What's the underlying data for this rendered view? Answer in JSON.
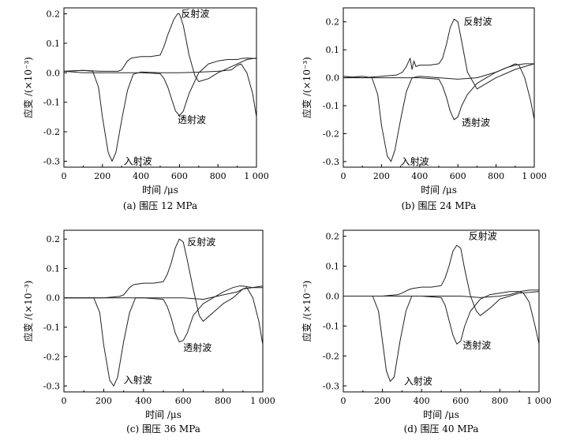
{
  "chart_data": [
    {
      "type": "line",
      "caption": "(a) 围压 12 MPa",
      "xlabel": "时间 /μs",
      "ylabel": "应变 /(×10⁻³)",
      "xlim": [
        0,
        1000
      ],
      "ylim": [
        -0.32,
        0.22
      ],
      "xticks": [
        0,
        200,
        400,
        600,
        800,
        1000
      ],
      "xtick_labels": [
        "0",
        "200",
        "400",
        "600",
        "800",
        "1 000"
      ],
      "yticks": [
        -0.3,
        -0.2,
        -0.1,
        0.0,
        0.1,
        0.2
      ],
      "ytick_labels": [
        "-0.3",
        "-0.2",
        "-0.1",
        "0.0",
        "0.1",
        "0.2"
      ],
      "series": [
        {
          "name": "入射波",
          "x": [
            0,
            100,
            150,
            180,
            200,
            230,
            250,
            270,
            300,
            330,
            360,
            400,
            500,
            600,
            700,
            800,
            870,
            900,
            920,
            950,
            980,
            1000
          ],
          "y": [
            0.005,
            0.008,
            0.005,
            -0.05,
            -0.15,
            -0.27,
            -0.3,
            -0.27,
            -0.16,
            -0.06,
            -0.005,
            0.003,
            0.0,
            0.0,
            0.002,
            0.005,
            0.01,
            0.025,
            0.03,
            0.0,
            -0.07,
            -0.15
          ]
        },
        {
          "name": "反射波",
          "x": [
            0,
            100,
            200,
            280,
            300,
            330,
            350,
            400,
            450,
            500,
            520,
            540,
            570,
            590,
            600,
            620,
            650,
            680,
            700,
            750,
            800,
            900,
            950,
            1000
          ],
          "y": [
            0.005,
            0.008,
            0.005,
            0.005,
            0.01,
            0.04,
            0.05,
            0.055,
            0.055,
            0.06,
            0.09,
            0.13,
            0.18,
            0.2,
            0.2,
            0.16,
            0.06,
            -0.01,
            -0.03,
            -0.02,
            0.0,
            0.03,
            0.045,
            0.05
          ]
        },
        {
          "name": "透射波",
          "x": [
            0,
            100,
            200,
            300,
            400,
            500,
            520,
            540,
            560,
            580,
            600,
            620,
            650,
            700,
            750,
            800,
            850,
            880,
            900,
            920,
            950,
            1000
          ],
          "y": [
            0.005,
            0.0,
            0.0,
            0.0,
            0.0,
            -0.003,
            -0.02,
            -0.05,
            -0.09,
            -0.13,
            -0.145,
            -0.13,
            -0.07,
            0.0,
            0.03,
            0.04,
            0.045,
            0.045,
            0.045,
            0.048,
            0.05,
            0.048
          ]
        }
      ],
      "annotations": [
        {
          "text": "反射波",
          "x": 608,
          "y": 0.2
        },
        {
          "text": "透射波",
          "x": 590,
          "y": -0.16
        },
        {
          "text": "入射波",
          "x": 310,
          "y": -0.3
        }
      ]
    },
    {
      "type": "line",
      "caption": "(b) 围压 24 MPa",
      "xlabel": "时间 /μs",
      "ylabel": "应变 /(×10⁻³)",
      "xlim": [
        0,
        1000
      ],
      "ylim": [
        -0.32,
        0.25
      ],
      "xticks": [
        0,
        200,
        400,
        600,
        800,
        1000
      ],
      "xtick_labels": [
        "0",
        "200",
        "400",
        "600",
        "800",
        "1 000"
      ],
      "yticks": [
        -0.3,
        -0.2,
        -0.1,
        0.0,
        0.1,
        0.2
      ],
      "ytick_labels": [
        "-0.3",
        "-0.2",
        "-0.1",
        "0.0",
        "0.1",
        "0.2"
      ],
      "series": [
        {
          "name": "入射波",
          "x": [
            0,
            100,
            150,
            180,
            200,
            230,
            250,
            270,
            300,
            330,
            360,
            400,
            500,
            600,
            700,
            800,
            870,
            900,
            920,
            950,
            980,
            1000
          ],
          "y": [
            0.0,
            0.005,
            0.0,
            -0.06,
            -0.17,
            -0.28,
            -0.3,
            -0.26,
            -0.15,
            -0.05,
            0.0,
            0.005,
            0.0,
            -0.005,
            0.0,
            0.02,
            0.04,
            0.05,
            0.045,
            0.0,
            -0.08,
            -0.15
          ]
        },
        {
          "name": "反射波",
          "x": [
            0,
            100,
            200,
            280,
            310,
            330,
            350,
            360,
            370,
            380,
            400,
            450,
            500,
            520,
            540,
            560,
            580,
            600,
            620,
            650,
            700,
            750,
            800,
            900,
            1000
          ],
          "y": [
            0.005,
            0.0,
            0.005,
            0.01,
            0.02,
            0.04,
            0.07,
            0.03,
            0.06,
            0.04,
            0.045,
            0.045,
            0.05,
            0.07,
            0.12,
            0.18,
            0.21,
            0.2,
            0.13,
            0.02,
            -0.04,
            -0.02,
            0.0,
            0.03,
            0.05
          ]
        },
        {
          "name": "透射波",
          "x": [
            0,
            100,
            200,
            300,
            400,
            500,
            520,
            540,
            560,
            580,
            600,
            620,
            650,
            700,
            750,
            800,
            850,
            900,
            950,
            1000
          ],
          "y": [
            0.0,
            0.0,
            0.0,
            0.0,
            0.0,
            -0.005,
            -0.03,
            -0.07,
            -0.12,
            -0.15,
            -0.14,
            -0.1,
            -0.06,
            -0.02,
            0.0,
            0.02,
            0.035,
            0.045,
            0.05,
            0.05
          ]
        }
      ],
      "annotations": [
        {
          "text": "反射波",
          "x": 630,
          "y": 0.2
        },
        {
          "text": "透射波",
          "x": 620,
          "y": -0.16
        },
        {
          "text": "入射波",
          "x": 300,
          "y": -0.3
        }
      ]
    },
    {
      "type": "line",
      "caption": "(c) 围压 36 MPa",
      "xlabel": "时间 /μs",
      "ylabel": "应变 /(×10⁻³)",
      "xlim": [
        0,
        1000
      ],
      "ylim": [
        -0.32,
        0.23
      ],
      "xticks": [
        0,
        200,
        400,
        600,
        800,
        1000
      ],
      "xtick_labels": [
        "0",
        "200",
        "400",
        "600",
        "800",
        "1 000"
      ],
      "yticks": [
        -0.3,
        -0.2,
        -0.1,
        0.0,
        0.1,
        0.2
      ],
      "ytick_labels": [
        "-0.3",
        "-0.2",
        "-0.1",
        "0.0",
        "0.1",
        "0.2"
      ],
      "series": [
        {
          "name": "入射波",
          "x": [
            0,
            100,
            150,
            180,
            200,
            230,
            250,
            270,
            300,
            330,
            360,
            400,
            500,
            600,
            700,
            800,
            870,
            900,
            920,
            950,
            980,
            1000
          ],
          "y": [
            0.0,
            0.0,
            0.0,
            -0.05,
            -0.16,
            -0.28,
            -0.3,
            -0.27,
            -0.15,
            -0.05,
            0.0,
            0.0,
            0.0,
            0.0,
            -0.005,
            0.01,
            0.02,
            0.03,
            0.035,
            0.0,
            -0.08,
            -0.16
          ]
        },
        {
          "name": "反射波",
          "x": [
            0,
            100,
            200,
            280,
            300,
            330,
            350,
            400,
            450,
            500,
            520,
            540,
            560,
            580,
            600,
            620,
            650,
            680,
            700,
            750,
            800,
            850,
            900,
            1000
          ],
          "y": [
            0.0,
            0.0,
            0.0,
            0.005,
            0.01,
            0.035,
            0.045,
            0.05,
            0.05,
            0.055,
            0.08,
            0.12,
            0.17,
            0.2,
            0.19,
            0.13,
            0.03,
            -0.06,
            -0.08,
            -0.05,
            -0.02,
            0.0,
            0.03,
            0.04
          ]
        },
        {
          "name": "透射波",
          "x": [
            0,
            100,
            200,
            300,
            400,
            500,
            520,
            540,
            560,
            580,
            600,
            620,
            650,
            700,
            750,
            800,
            850,
            880,
            900,
            950,
            1000
          ],
          "y": [
            0.0,
            0.0,
            0.0,
            0.0,
            0.0,
            -0.005,
            -0.03,
            -0.07,
            -0.12,
            -0.15,
            -0.145,
            -0.12,
            -0.06,
            -0.02,
            0.0,
            0.02,
            0.035,
            0.04,
            0.04,
            0.035,
            0.035
          ]
        }
      ],
      "annotations": [
        {
          "text": "反射波",
          "x": 620,
          "y": 0.19
        },
        {
          "text": "透射波",
          "x": 600,
          "y": -0.17
        },
        {
          "text": "入射波",
          "x": 300,
          "y": -0.28
        }
      ]
    },
    {
      "type": "line",
      "caption": "(d) 围压 40 MPa",
      "xlabel": "时间 /μs",
      "ylabel": "应变 /(×10⁻³)",
      "xlim": [
        0,
        1000
      ],
      "ylim": [
        -0.32,
        0.22
      ],
      "xticks": [
        0,
        200,
        400,
        600,
        800,
        1000
      ],
      "xtick_labels": [
        "0",
        "200",
        "400",
        "600",
        "800",
        "1 000"
      ],
      "yticks": [
        -0.3,
        -0.2,
        -0.1,
        0.0,
        0.1,
        0.2
      ],
      "ytick_labels": [
        "-0.3",
        "-0.2",
        "-0.1",
        "0.0",
        "0.1",
        "0.2"
      ],
      "series": [
        {
          "name": "入射波",
          "x": [
            0,
            100,
            150,
            180,
            200,
            220,
            240,
            260,
            290,
            320,
            350,
            400,
            500,
            600,
            700,
            800,
            850,
            880,
            900,
            920,
            950,
            980,
            1000
          ],
          "y": [
            0.0,
            0.0,
            0.0,
            -0.05,
            -0.15,
            -0.25,
            -0.285,
            -0.27,
            -0.15,
            -0.05,
            0.0,
            0.0,
            0.0,
            0.0,
            -0.005,
            0.0,
            0.005,
            0.01,
            0.015,
            0.01,
            -0.02,
            -0.1,
            -0.16
          ]
        },
        {
          "name": "反射波",
          "x": [
            0,
            100,
            200,
            280,
            300,
            330,
            350,
            400,
            450,
            500,
            520,
            540,
            560,
            580,
            600,
            620,
            650,
            680,
            700,
            750,
            800,
            900,
            1000
          ],
          "y": [
            0.0,
            0.0,
            0.0,
            0.005,
            0.01,
            0.02,
            0.025,
            0.03,
            0.03,
            0.035,
            0.06,
            0.1,
            0.15,
            0.17,
            0.16,
            0.09,
            0.0,
            -0.05,
            -0.065,
            -0.04,
            -0.01,
            0.01,
            0.015
          ]
        },
        {
          "name": "透射波",
          "x": [
            0,
            100,
            200,
            300,
            400,
            500,
            520,
            540,
            560,
            580,
            600,
            620,
            650,
            700,
            750,
            800,
            850,
            900,
            950,
            1000
          ],
          "y": [
            0.0,
            0.0,
            0.0,
            0.0,
            0.0,
            -0.005,
            -0.03,
            -0.08,
            -0.13,
            -0.16,
            -0.15,
            -0.1,
            -0.05,
            -0.01,
            0.005,
            0.01,
            0.015,
            0.015,
            0.02,
            0.02
          ]
        }
      ],
      "annotations": [
        {
          "text": "反射波",
          "x": 640,
          "y": 0.2
        },
        {
          "text": "透射波",
          "x": 610,
          "y": -0.165
        },
        {
          "text": "入射波",
          "x": 310,
          "y": -0.285
        }
      ]
    }
  ]
}
